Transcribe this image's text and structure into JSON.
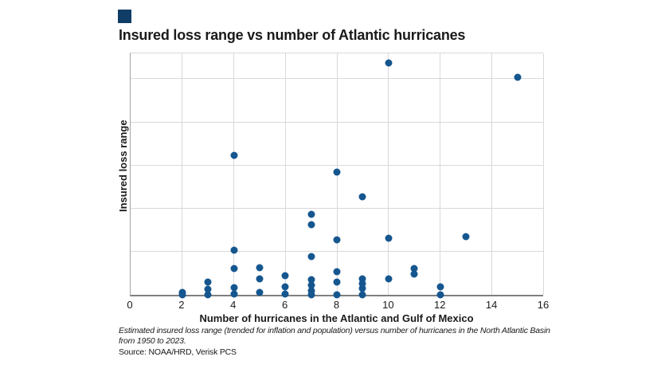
{
  "chart": {
    "title": "Insured loss range vs number of Atlantic hurricanes",
    "y_axis_label": "Insured loss range",
    "x_axis_label": "Number of hurricanes in the Atlantic and Gulf of Mexico",
    "caption": "Estimated insured loss range (trended for inflation and population) versus number of hurricanes in the North Atlantic Basin from 1950 to 2023.",
    "source": "Source: NOAA/HRD, Verisk PCS",
    "colors": {
      "dot": "#15568f",
      "gridline": "#d9d9d9",
      "x_axis_line": "#7f7f7f",
      "y_axis_line": "#a3a3a3",
      "text": "#1a1a1a",
      "brand_square": "#0f3d66",
      "background": "#ffffff"
    }
  },
  "chart_data": {
    "type": "scatter",
    "title": "Insured loss range vs number of Atlantic hurricanes",
    "xlabel": "Number of hurricanes in the Atlantic and Gulf of Mexico",
    "ylabel": "Insured loss range",
    "xlim": [
      0,
      16
    ],
    "x_ticks": [
      0,
      2,
      4,
      6,
      8,
      10,
      12,
      14,
      16
    ],
    "ylim": [
      0,
      5.59
    ],
    "y_gridlines": [
      1,
      2,
      3,
      4,
      5
    ],
    "y_axis_note": "y axis has no tick labels in source; values are relative units where one gridline spacing = 1",
    "grid": "on",
    "legend": "none",
    "points": [
      [
        2,
        0.06
      ],
      [
        2,
        0.0
      ],
      [
        3,
        0.29
      ],
      [
        3,
        0.13
      ],
      [
        3,
        0.0
      ],
      [
        4,
        3.22
      ],
      [
        4,
        1.04
      ],
      [
        4,
        0.61
      ],
      [
        4,
        0.17
      ],
      [
        4,
        0.01
      ],
      [
        5,
        0.63
      ],
      [
        5,
        0.37
      ],
      [
        5,
        0.05
      ],
      [
        6,
        0.45
      ],
      [
        6,
        0.18
      ],
      [
        6,
        0.01
      ],
      [
        7,
        1.87
      ],
      [
        7,
        1.63
      ],
      [
        7,
        0.88
      ],
      [
        7,
        0.35
      ],
      [
        7,
        0.22
      ],
      [
        7,
        0.1
      ],
      [
        7,
        0.0
      ],
      [
        8,
        2.85
      ],
      [
        8,
        1.28
      ],
      [
        8,
        0.54
      ],
      [
        8,
        0.29
      ],
      [
        8,
        0.0
      ],
      [
        9,
        2.27
      ],
      [
        9,
        0.36
      ],
      [
        9,
        0.25
      ],
      [
        9,
        0.14
      ],
      [
        9,
        0.0
      ],
      [
        10,
        5.36
      ],
      [
        10,
        1.31
      ],
      [
        10,
        0.37
      ],
      [
        11,
        0.6
      ],
      [
        11,
        0.48
      ],
      [
        12,
        0.18
      ],
      [
        12,
        0.0
      ],
      [
        13,
        1.35
      ],
      [
        15,
        5.03
      ]
    ]
  }
}
